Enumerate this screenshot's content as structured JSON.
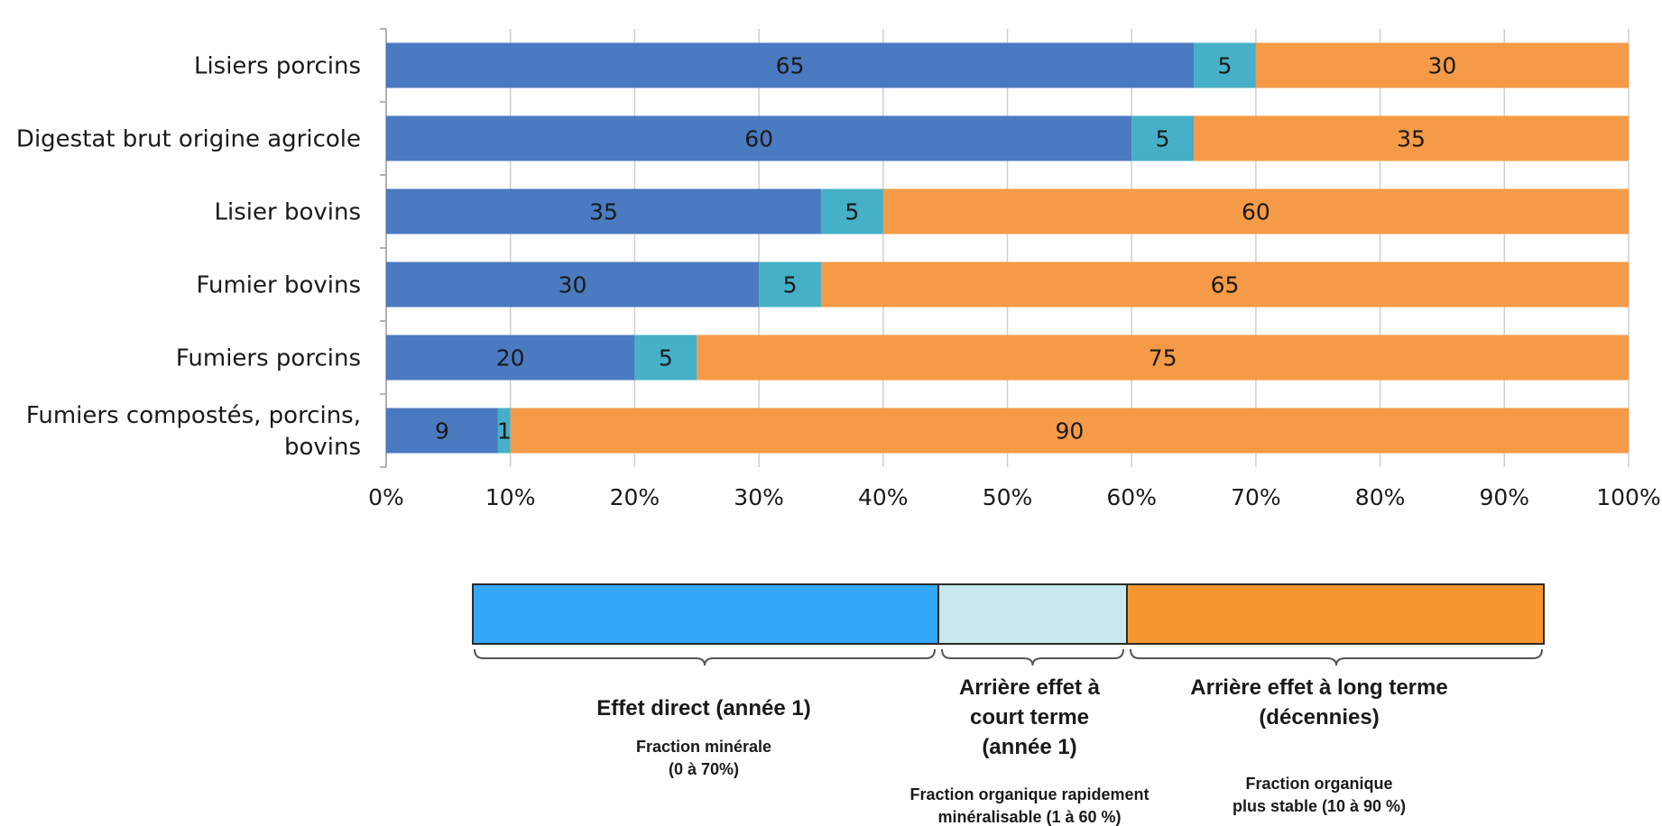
{
  "chart_data": {
    "type": "bar",
    "orientation": "horizontal",
    "stacked": "percent",
    "categories": [
      [
        "Lisiers porcins"
      ],
      [
        "Digestat brut origine agricole"
      ],
      [
        "Lisier bovins"
      ],
      [
        "Fumier bovins"
      ],
      [
        "Fumiers porcins"
      ],
      [
        "Fumiers compostés, porcins,",
        "bovins"
      ]
    ],
    "series": [
      {
        "values": [
          65,
          60,
          35,
          30,
          20,
          9
        ],
        "color": "#4a7abf"
      },
      {
        "values": [
          5,
          5,
          5,
          5,
          5,
          1
        ],
        "color": "#45b0c8"
      },
      {
        "values": [
          30,
          35,
          60,
          65,
          75,
          90
        ],
        "color": "#f59a46"
      }
    ],
    "xlim": [
      0,
      100
    ],
    "x_ticks": [
      "0%",
      "10%",
      "20%",
      "30%",
      "40%",
      "50%",
      "60%",
      "70%",
      "80%",
      "90%",
      "100%"
    ],
    "grid": "vertical",
    "title": "",
    "xlabel": "",
    "ylabel": ""
  },
  "legend_diagram": {
    "segments": [
      {
        "color": "#33a6f8",
        "title_lines": [
          "Effet direct (année 1)"
        ],
        "sub_lines": [
          "Fraction minérale",
          "(0 à 70%)"
        ]
      },
      {
        "color": "#c6e8ee",
        "title_lines": [
          "Arrière effet à",
          "court terme",
          "(année 1)"
        ],
        "sub_lines": [
          "Fraction organique rapidement",
          "minéralisable (1 à 60 %)"
        ]
      },
      {
        "color": "#f7962e",
        "title_lines": [
          "Arrière effet à long terme",
          "(décennies)"
        ],
        "sub_lines": [
          "Fraction organique",
          "plus stable  (10 à 90 %)"
        ]
      }
    ]
  }
}
